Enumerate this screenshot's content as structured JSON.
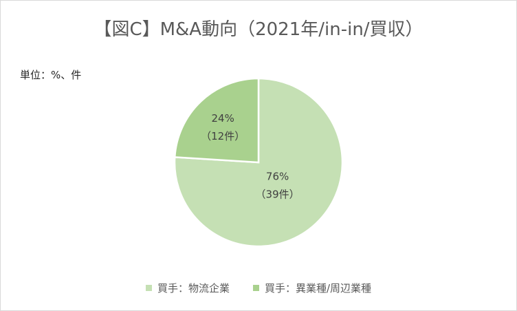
{
  "chart_data": {
    "type": "pie",
    "title": "【図C】M&A動向（2021年/in-in/買収）",
    "unit_note": "単位：%、件",
    "slices": [
      {
        "name": "買手：物流企業",
        "value": 76,
        "count": 39,
        "pct_label": "76%",
        "count_label": "（39件）",
        "color": "#c5e0b4"
      },
      {
        "name": "買手：異業種/周辺業種",
        "value": 24,
        "count": 12,
        "pct_label": "24%",
        "count_label": "（12件）",
        "color": "#a9d18e"
      }
    ],
    "legend_position": "bottom"
  }
}
